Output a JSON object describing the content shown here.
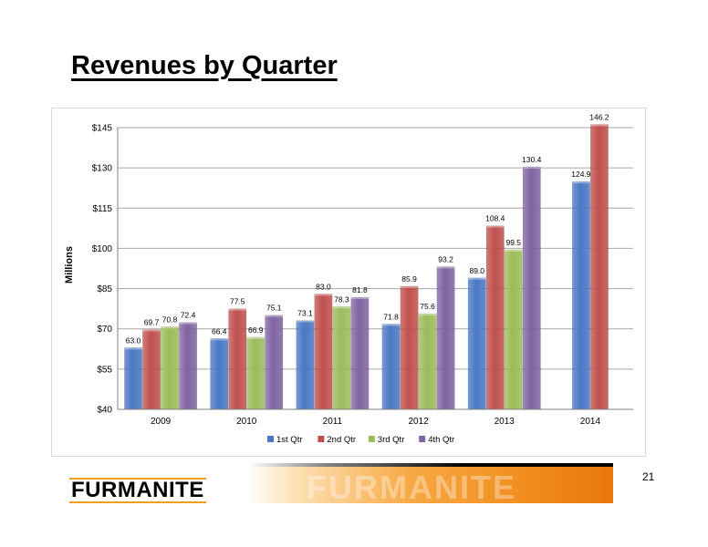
{
  "slide": {
    "title": "Revenues by Quarter",
    "number": "21"
  },
  "footer": {
    "logo_text": "FURMANITE",
    "logo_mark": "®",
    "banner_watermark": "FURMANITE"
  },
  "colors": {
    "series": [
      "#4a78c4",
      "#c0504d",
      "#9bbb59",
      "#8064a2"
    ],
    "accent": "#f39c1e"
  },
  "chart_data": {
    "type": "bar",
    "title": "",
    "xlabel": "",
    "ylabel": "Millions",
    "ylim": [
      40,
      145
    ],
    "yticks": [
      40,
      55,
      70,
      85,
      100,
      115,
      130,
      145
    ],
    "ytick_labels": [
      "$40",
      "$55",
      "$70",
      "$85",
      "$100",
      "$115",
      "$130",
      "$145"
    ],
    "categories": [
      "2009",
      "2010",
      "2011",
      "2012",
      "2013",
      "2014"
    ],
    "grid": true,
    "legend_position": "bottom",
    "series": [
      {
        "name": "1st Qtr",
        "values": [
          63.0,
          66.4,
          73.1,
          71.8,
          89.0,
          124.9
        ],
        "labels": [
          "63.0",
          "66.4",
          "73.1",
          "71.8",
          "89.0",
          "124.9"
        ]
      },
      {
        "name": "2nd Qtr",
        "values": [
          69.7,
          77.5,
          83.0,
          85.9,
          108.4,
          146.2
        ],
        "labels": [
          "69.7",
          "77.5",
          "83.0",
          "85.9",
          "108.4",
          "146.2"
        ]
      },
      {
        "name": "3rd Qtr",
        "values": [
          70.8,
          66.9,
          78.3,
          75.6,
          99.5,
          null
        ],
        "labels": [
          "70.8",
          "66.9",
          "78.3",
          "75.6",
          "99.5",
          null
        ]
      },
      {
        "name": "4th Qtr",
        "values": [
          72.4,
          75.1,
          81.8,
          93.2,
          130.4,
          null
        ],
        "labels": [
          "72.4",
          "75.1",
          "81.8",
          "93.2",
          "130.4",
          null
        ]
      }
    ]
  }
}
